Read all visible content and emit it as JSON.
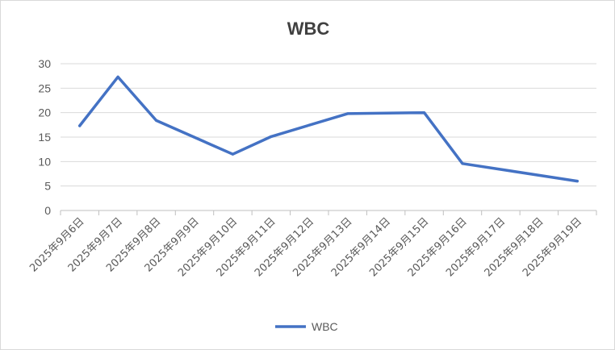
{
  "chart_data": {
    "type": "line",
    "title": "WBC",
    "xlabel": "",
    "ylabel": "",
    "ylim": [
      0,
      30
    ],
    "yticks": [
      0,
      5,
      10,
      15,
      20,
      25,
      30
    ],
    "grid": true,
    "legend_position": "bottom",
    "categories": [
      "2025年9月6日",
      "2025年9月7日",
      "2025年9月8日",
      "2025年9月9日",
      "2025年9月10日",
      "2025年9月11日",
      "2025年9月12日",
      "2025年9月13日",
      "2025年9月14日",
      "2025年9月15日",
      "2025年9月16日",
      "2025年9月17日",
      "2025年9月18日",
      "2025年9月19日"
    ],
    "x": [
      "2025-09-06",
      "2025-09-07",
      "2025-09-08",
      "2025-09-10",
      "2025-09-11",
      "2025-09-13",
      "2025-09-15",
      "2025-09-16",
      "2025-09-19"
    ],
    "series": [
      {
        "name": "WBC",
        "color": "#4472c4",
        "values": [
          17.3,
          27.3,
          18.4,
          11.5,
          15.1,
          19.8,
          20.0,
          9.6,
          6.0
        ]
      }
    ]
  }
}
